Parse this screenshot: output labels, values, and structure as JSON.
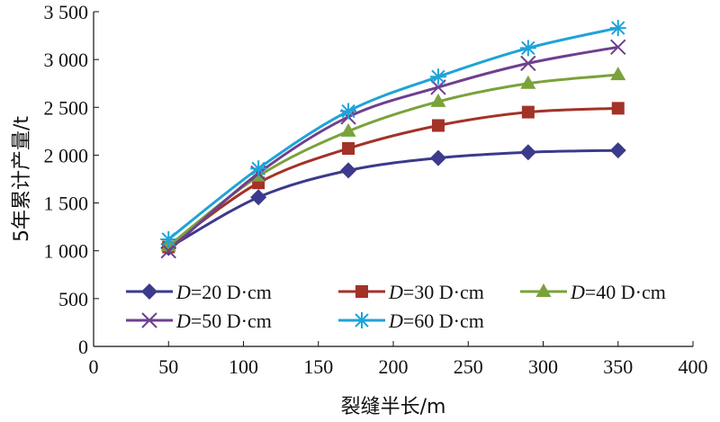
{
  "chart_data": {
    "type": "line",
    "title": "",
    "xlabel": "裂缝半长/m",
    "ylabel": "5年累计产量/t",
    "xlim": [
      0,
      400
    ],
    "ylim": [
      0,
      3500
    ],
    "x_ticks": [
      "0",
      "50",
      "100",
      "150",
      "200",
      "250",
      "300",
      "350",
      "400"
    ],
    "y_ticks": [
      "0",
      "500",
      "1 000",
      "1 500",
      "2 000",
      "2 500",
      "3 000",
      "3 500"
    ],
    "x_tick_values": [
      0,
      50,
      100,
      150,
      200,
      250,
      300,
      350,
      400
    ],
    "y_tick_values": [
      0,
      500,
      1000,
      1500,
      2000,
      2500,
      3000,
      3500
    ],
    "grid": false,
    "legend_position": "bottom",
    "x": [
      50,
      110,
      170,
      230,
      290,
      350
    ],
    "series": [
      {
        "name_var": "D",
        "name_rest": "=20 D·cm",
        "color": "#3b3a8c",
        "marker": "diamond",
        "values": [
          1030,
          1560,
          1840,
          1970,
          2030,
          2050
        ]
      },
      {
        "name_var": "D",
        "name_rest": "=30 D·cm",
        "color": "#a33228",
        "marker": "square",
        "values": [
          1040,
          1710,
          2070,
          2310,
          2450,
          2490
        ]
      },
      {
        "name_var": "D",
        "name_rest": "=40 D·cm",
        "color": "#7aa23a",
        "marker": "triangle",
        "values": [
          1050,
          1780,
          2250,
          2560,
          2750,
          2840
        ]
      },
      {
        "name_var": "D",
        "name_rest": "=50 D·cm",
        "color": "#6e3f8f",
        "marker": "x",
        "values": [
          1000,
          1810,
          2400,
          2710,
          2960,
          3130
        ]
      },
      {
        "name_var": "D",
        "name_rest": "=60 D·cm",
        "color": "#1ea3d8",
        "marker": "asterisk",
        "values": [
          1120,
          1860,
          2460,
          2820,
          3120,
          3330
        ]
      }
    ]
  }
}
